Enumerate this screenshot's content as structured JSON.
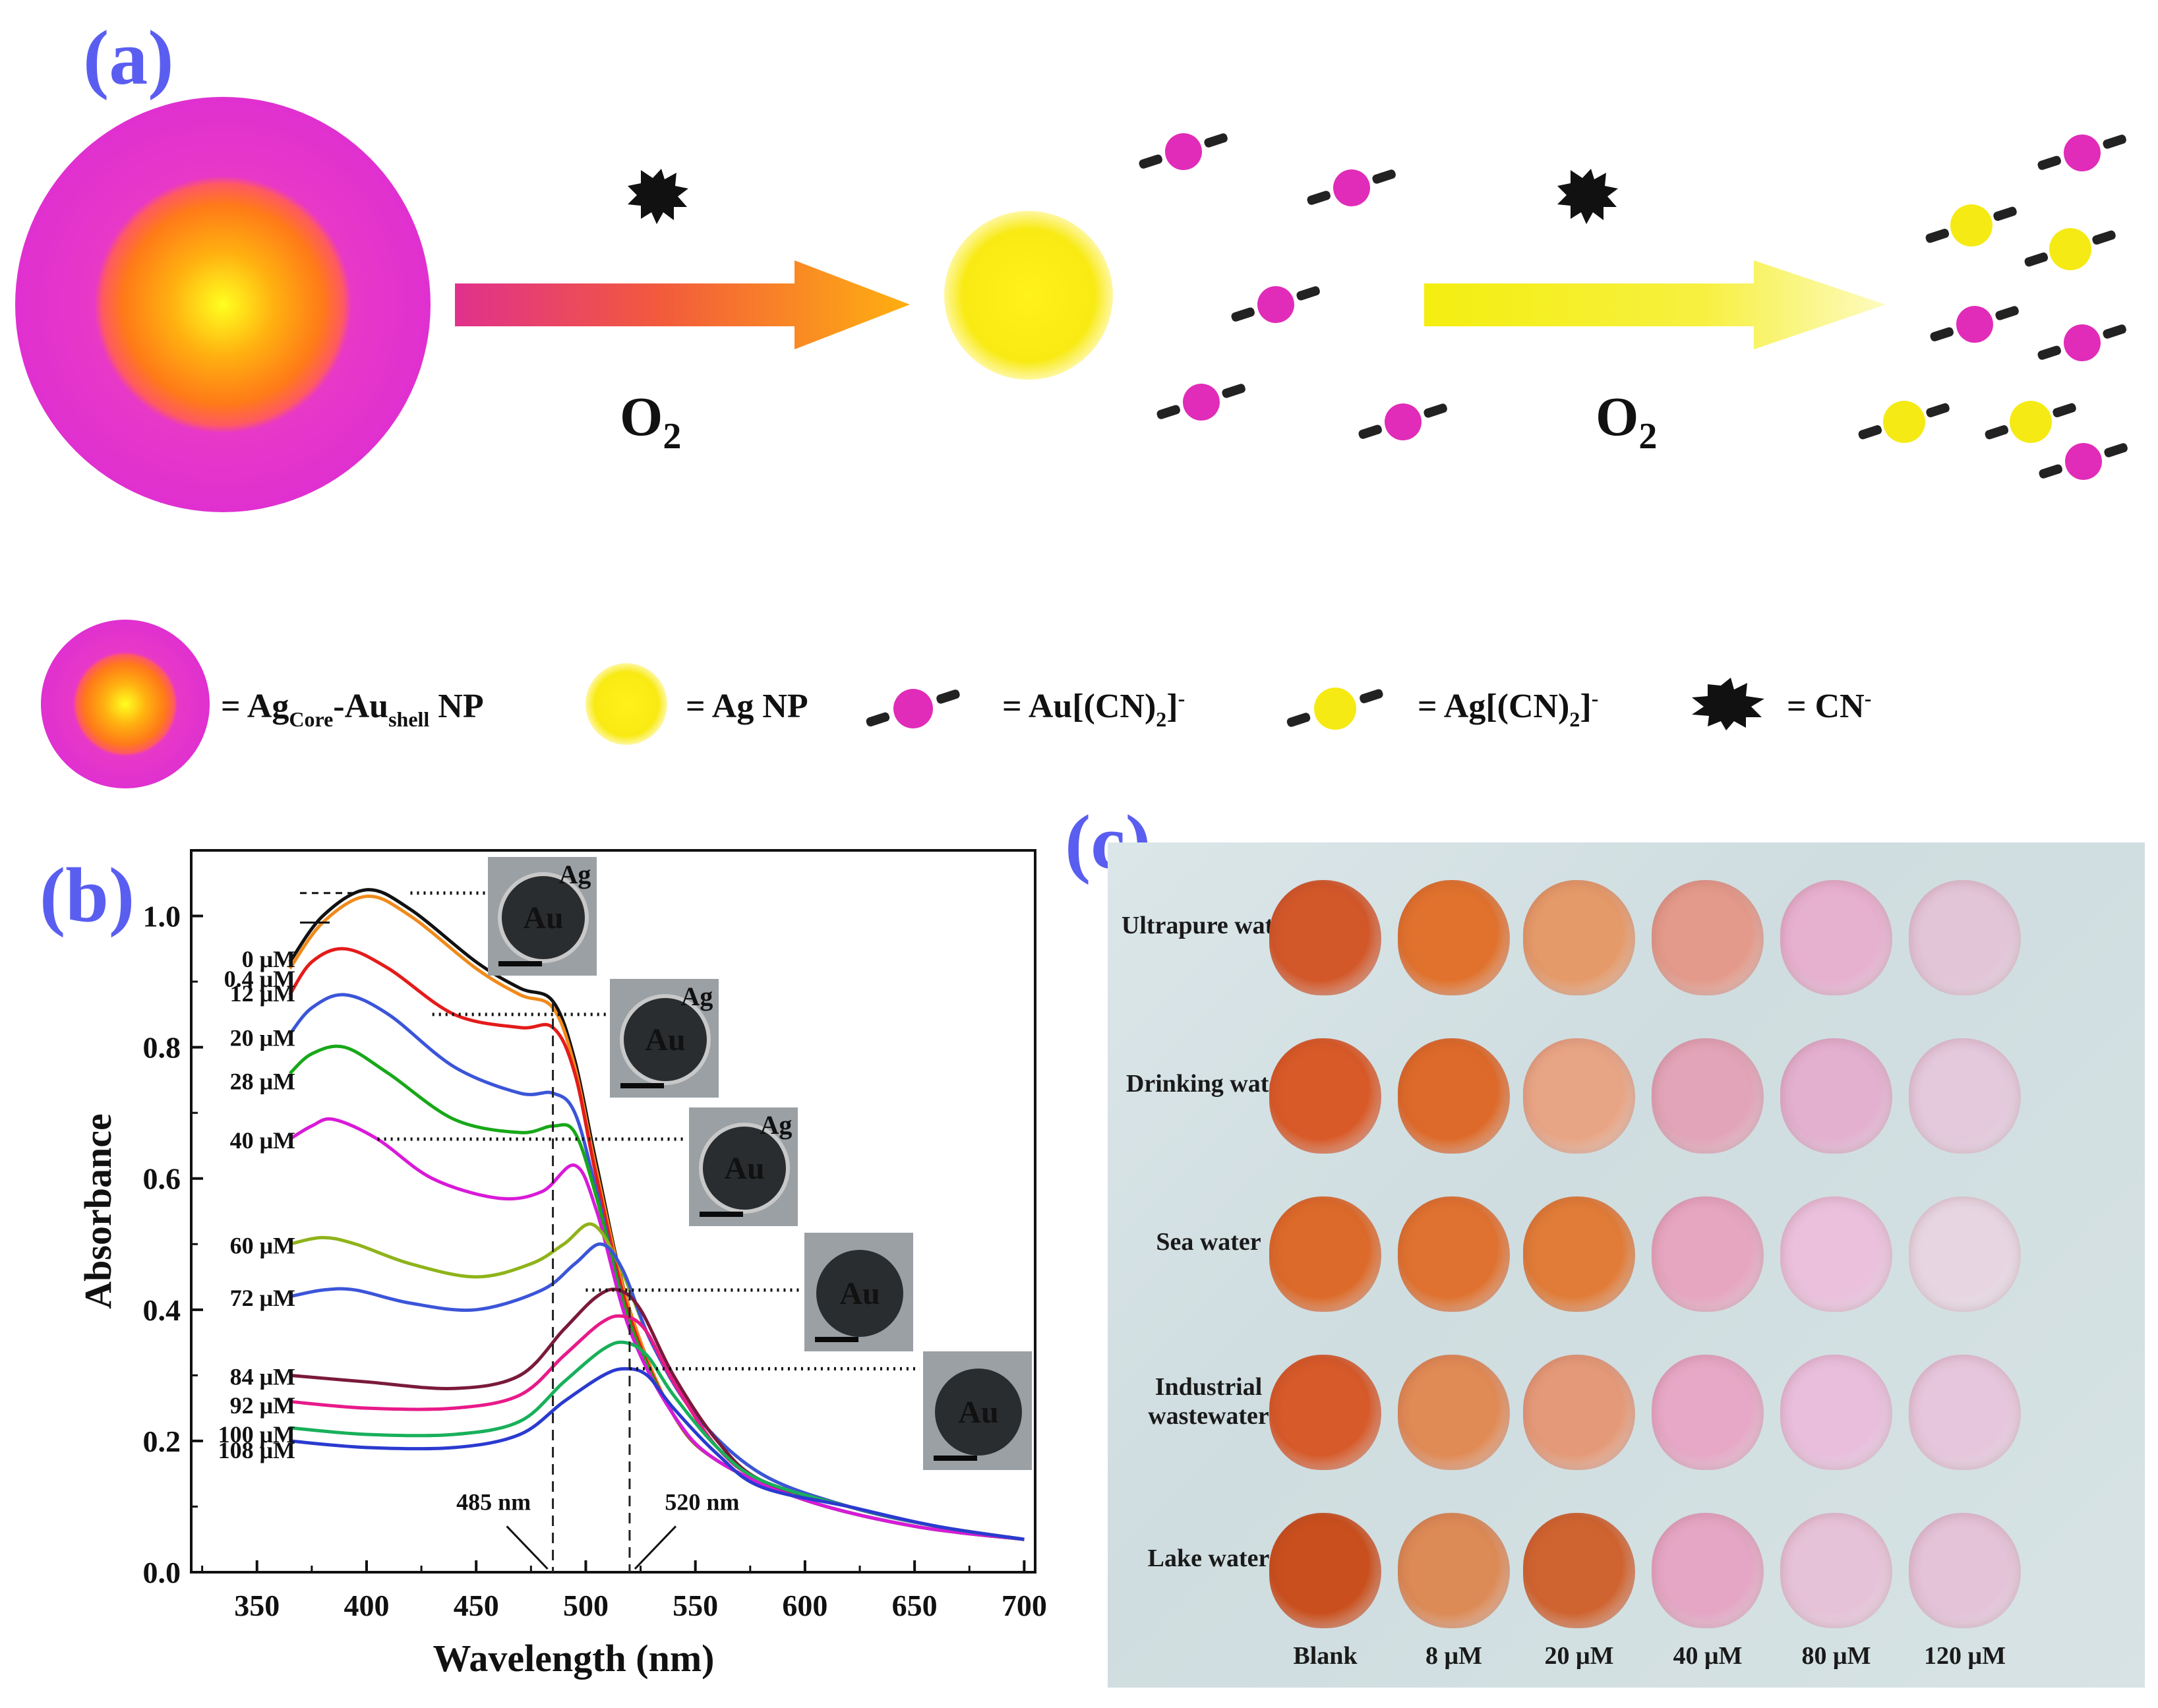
{
  "panels": {
    "a": "(a)",
    "b": "(b)",
    "c": "(c)"
  },
  "scheme": {
    "arrow1_label": "O",
    "arrow1_sub": "2",
    "arrow2_label": "O",
    "arrow2_sub": "2",
    "legend": {
      "core_shell": {
        "a": "= Ag",
        "sub1": "Core",
        "b": "-Au",
        "sub2": "shell",
        "c": " NP"
      },
      "ag_np": "= Ag NP",
      "au_cn": {
        "text": "= Au[(CN)",
        "sub": "2",
        "close": "]",
        "sup": "-"
      },
      "ag_cn": {
        "text": "= Ag[(CN)",
        "sub": "2",
        "close": "]",
        "sup": "-"
      },
      "cn": {
        "text": "= CN",
        "sup": "-"
      }
    },
    "colors": {
      "magenta": "#e832c8",
      "orange": "#ff8a1a",
      "yellow": "#f7ec16",
      "cn_black": "#111111"
    }
  },
  "chart_data": {
    "type": "line",
    "xlabel": "Wavelength (nm)",
    "ylabel": "Absorbance",
    "xlim": [
      320,
      705
    ],
    "ylim": [
      0.0,
      1.1
    ],
    "xticks": [
      "350",
      "400",
      "450",
      "500",
      "550",
      "600",
      "650",
      "700"
    ],
    "yticks": [
      "0.0",
      "0.2",
      "0.4",
      "0.6",
      "0.8",
      "1.0"
    ],
    "xtick_values": [
      350,
      400,
      450,
      500,
      550,
      600,
      650,
      700
    ],
    "ytick_values": [
      0.0,
      0.2,
      0.4,
      0.6,
      0.8,
      1.0
    ],
    "annotations": [
      "485 nm",
      "520 nm"
    ],
    "tem_labels": {
      "au": "Au",
      "ag": "Ag"
    },
    "series": [
      {
        "name": "0 μM",
        "color": "#111111",
        "x": [
          365,
          380,
          400,
          420,
          450,
          470,
          485,
          495,
          505,
          520,
          540,
          560,
          600,
          650,
          700
        ],
        "y": [
          0.93,
          1.0,
          1.04,
          1.01,
          0.93,
          0.89,
          0.87,
          0.78,
          0.62,
          0.4,
          0.24,
          0.17,
          0.11,
          0.07,
          0.05
        ]
      },
      {
        "name": "0.4 μM",
        "color": "#f08a1a",
        "x": [
          365,
          380,
          400,
          420,
          450,
          470,
          485,
          495,
          505,
          520,
          540,
          560,
          600,
          650,
          700
        ],
        "y": [
          0.92,
          0.99,
          1.03,
          1.0,
          0.92,
          0.88,
          0.86,
          0.77,
          0.61,
          0.4,
          0.24,
          0.17,
          0.11,
          0.07,
          0.05
        ]
      },
      {
        "name": "12 μM",
        "color": "#e41b1b",
        "x": [
          365,
          375,
          390,
          410,
          440,
          470,
          485,
          495,
          505,
          520,
          540,
          560,
          600,
          650,
          700
        ],
        "y": [
          0.88,
          0.93,
          0.95,
          0.92,
          0.85,
          0.83,
          0.83,
          0.76,
          0.6,
          0.39,
          0.24,
          0.17,
          0.11,
          0.07,
          0.05
        ]
      },
      {
        "name": "20 μM",
        "color": "#3b55d8",
        "x": [
          365,
          375,
          390,
          410,
          440,
          470,
          485,
          495,
          505,
          520,
          540,
          560,
          600,
          650,
          700
        ],
        "y": [
          0.82,
          0.86,
          0.88,
          0.85,
          0.77,
          0.73,
          0.73,
          0.7,
          0.58,
          0.38,
          0.24,
          0.17,
          0.11,
          0.07,
          0.05
        ]
      },
      {
        "name": "28 μM",
        "color": "#18a818",
        "x": [
          365,
          375,
          390,
          410,
          440,
          470,
          485,
          495,
          505,
          520,
          540,
          560,
          600,
          650,
          700
        ],
        "y": [
          0.76,
          0.79,
          0.8,
          0.76,
          0.69,
          0.67,
          0.68,
          0.67,
          0.57,
          0.38,
          0.24,
          0.17,
          0.11,
          0.07,
          0.05
        ]
      },
      {
        "name": "40 μM",
        "color": "#d81ad8",
        "x": [
          365,
          375,
          385,
          405,
          430,
          460,
          480,
          495,
          505,
          520,
          540,
          560,
          600,
          650,
          700
        ],
        "y": [
          0.66,
          0.68,
          0.69,
          0.66,
          0.6,
          0.57,
          0.58,
          0.62,
          0.55,
          0.37,
          0.24,
          0.17,
          0.11,
          0.07,
          0.05
        ]
      },
      {
        "name": "60 μM",
        "color": "#8fb31a",
        "x": [
          365,
          380,
          395,
          420,
          450,
          475,
          490,
          503,
          515,
          530,
          550,
          580,
          620,
          660,
          700
        ],
        "y": [
          0.5,
          0.51,
          0.5,
          0.47,
          0.45,
          0.47,
          0.5,
          0.53,
          0.47,
          0.35,
          0.24,
          0.15,
          0.1,
          0.07,
          0.05
        ]
      },
      {
        "name": "72 μM",
        "color": "#3b55d8",
        "x": [
          365,
          380,
          395,
          420,
          450,
          480,
          495,
          507,
          517,
          530,
          550,
          580,
          620,
          660,
          700
        ],
        "y": [
          0.42,
          0.43,
          0.43,
          0.41,
          0.4,
          0.43,
          0.47,
          0.5,
          0.46,
          0.35,
          0.24,
          0.15,
          0.1,
          0.07,
          0.05
        ]
      },
      {
        "name": "84 μM",
        "color": "#7a1a3a",
        "x": [
          365,
          400,
          440,
          470,
          490,
          505,
          515,
          525,
          540,
          560,
          580,
          620,
          660,
          700
        ],
        "y": [
          0.3,
          0.29,
          0.28,
          0.3,
          0.37,
          0.42,
          0.43,
          0.4,
          0.3,
          0.2,
          0.14,
          0.1,
          0.07,
          0.05
        ]
      },
      {
        "name": "92 μM",
        "color": "#e81a8a",
        "x": [
          365,
          400,
          440,
          470,
          490,
          507,
          517,
          527,
          540,
          560,
          580,
          620,
          660,
          700
        ],
        "y": [
          0.26,
          0.25,
          0.25,
          0.27,
          0.33,
          0.38,
          0.39,
          0.37,
          0.29,
          0.19,
          0.14,
          0.1,
          0.07,
          0.05
        ]
      },
      {
        "name": "100 μM",
        "color": "#18b05a",
        "x": [
          365,
          400,
          440,
          470,
          490,
          508,
          518,
          528,
          540,
          560,
          580,
          620,
          660,
          700
        ],
        "y": [
          0.22,
          0.21,
          0.21,
          0.23,
          0.29,
          0.34,
          0.35,
          0.33,
          0.27,
          0.19,
          0.14,
          0.1,
          0.07,
          0.05
        ]
      },
      {
        "name": "108 μM",
        "color": "#2a3ad0",
        "x": [
          365,
          400,
          440,
          470,
          490,
          508,
          518,
          528,
          540,
          560,
          580,
          620,
          660,
          700
        ],
        "y": [
          0.2,
          0.19,
          0.19,
          0.21,
          0.26,
          0.3,
          0.31,
          0.3,
          0.25,
          0.18,
          0.13,
          0.1,
          0.07,
          0.05
        ]
      }
    ],
    "series_labels": [
      "0 μM",
      "0.4 μM",
      "12 μM",
      "20 μM",
      "28 μM",
      "40 μM",
      "60 μM",
      "72 μM",
      "84 μM",
      "92 μM",
      "100 μM",
      "108 μM"
    ]
  },
  "photo": {
    "rows": [
      "Ultrapure water",
      "Drinking water",
      "Sea water",
      "Industrial wastewater",
      "Lake water"
    ],
    "columns": [
      "Blank",
      "8  μM",
      "20  μM",
      "40  μM",
      "80  μM",
      "120  μM"
    ]
  }
}
